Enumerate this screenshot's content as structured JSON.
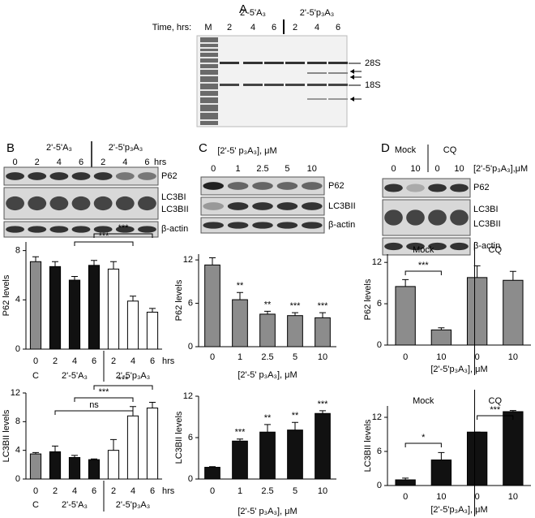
{
  "figure": {
    "A": {
      "label": "A",
      "time_label": "Time, hrs:",
      "marker_lane": "M",
      "groups": [
        "2'-5'A₃",
        "2'-5'p₃A₃"
      ],
      "lanes": [
        "2",
        "4",
        "6",
        "2",
        "4",
        "6"
      ],
      "markers": [
        "28S",
        "18S"
      ]
    },
    "B": {
      "label": "B",
      "groups": [
        "2'-5'A₃",
        "2'-5'p₃A₃"
      ],
      "lanes": [
        "0",
        "2",
        "4",
        "6",
        "2",
        "4",
        "6"
      ],
      "unit": "hrs",
      "blots": [
        "P62",
        "LC3BI",
        "LC3BII",
        "β-actin"
      ]
    },
    "C": {
      "label": "C",
      "header": "[2'-5' p₃A₃], μM",
      "lanes": [
        "0",
        "1",
        "2.5",
        "5",
        "10"
      ],
      "blots": [
        "P62",
        "LC3BII",
        "β-actin"
      ]
    },
    "D": {
      "label": "D",
      "groups": [
        "Mock",
        "CQ"
      ],
      "header": "[2'-5'p₃A₃],μM",
      "lanes": [
        "0",
        "10",
        "0",
        "10"
      ],
      "blots": [
        "P62",
        "LC3BI",
        "LC3BII",
        "β-actin"
      ]
    }
  },
  "chart_data": [
    {
      "type": "bar",
      "ylabel": "P62 levels",
      "categories": [
        "0",
        "2",
        "4",
        "6",
        "2",
        "4",
        "6"
      ],
      "values": [
        7.1,
        6.7,
        5.6,
        6.8,
        6.5,
        3.9,
        3.0
      ],
      "errors": [
        0.4,
        0.4,
        0.3,
        0.4,
        0.6,
        0.4,
        0.3
      ],
      "colors": [
        "#8c8c8c",
        "#111111",
        "#111111",
        "#111111",
        "#ffffff",
        "#ffffff",
        "#ffffff"
      ],
      "ylim": [
        0,
        8.7
      ],
      "yticks": [
        0,
        4,
        8
      ],
      "groups": [
        "C",
        "2'-5'A₃",
        "2'-5'p₃A₃"
      ],
      "x_unit": "hrs",
      "annotations": [
        "***",
        "***"
      ]
    },
    {
      "type": "bar",
      "ylabel": "LC3BII levels",
      "categories": [
        "0",
        "2",
        "4",
        "6",
        "2",
        "4",
        "6"
      ],
      "values": [
        3.5,
        3.8,
        3.0,
        2.7,
        4.0,
        8.8,
        9.9
      ],
      "errors": [
        0.2,
        0.8,
        0.3,
        0.1,
        1.5,
        1.3,
        0.8
      ],
      "colors": [
        "#8c8c8c",
        "#111111",
        "#111111",
        "#111111",
        "#ffffff",
        "#ffffff",
        "#ffffff"
      ],
      "ylim": [
        0,
        12
      ],
      "yticks": [
        0,
        4,
        8,
        12
      ],
      "groups": [
        "C",
        "2'-5'A₃",
        "2'-5'p₃A₃"
      ],
      "x_unit": "hrs",
      "annotations": [
        "ns",
        "***",
        "***"
      ]
    },
    {
      "type": "bar",
      "ylabel": "P62 levels",
      "xlabel": "[2'-5' p₃A₃], μM",
      "categories": [
        "0",
        "1",
        "2.5",
        "5",
        "10"
      ],
      "values": [
        11.3,
        6.5,
        4.5,
        4.3,
        4.0
      ],
      "errors": [
        1.0,
        1.0,
        0.4,
        0.4,
        0.7
      ],
      "colors": [
        "#8c8c8c",
        "#8c8c8c",
        "#8c8c8c",
        "#8c8c8c",
        "#8c8c8c"
      ],
      "ylim": [
        0,
        12.8
      ],
      "yticks": [
        0,
        6,
        12
      ],
      "annotations": [
        "**",
        "**",
        "***",
        "***"
      ]
    },
    {
      "type": "bar",
      "ylabel": "LC3BII levels",
      "xlabel": "[2'-5' p₃A₃], μM",
      "categories": [
        "0",
        "1",
        "2.5",
        "5",
        "10"
      ],
      "values": [
        1.7,
        5.5,
        6.8,
        7.1,
        9.5
      ],
      "errors": [
        0.1,
        0.3,
        1.1,
        1.1,
        0.4
      ],
      "colors": [
        "#111111",
        "#111111",
        "#111111",
        "#111111",
        "#111111"
      ],
      "ylim": [
        0,
        12
      ],
      "yticks": [
        0,
        6,
        12
      ],
      "annotations": [
        "***",
        "**",
        "**",
        "***"
      ]
    },
    {
      "type": "bar",
      "ylabel": "P62 levels",
      "xlabel": "[2'-5'p₃A₃], μM",
      "categories": [
        "0",
        "10",
        "0",
        "10"
      ],
      "values": [
        8.5,
        2.2,
        9.8,
        9.4
      ],
      "errors": [
        1.0,
        0.3,
        1.7,
        1.3
      ],
      "colors": [
        "#8c8c8c",
        "#8c8c8c",
        "#8c8c8c",
        "#8c8c8c"
      ],
      "ylim": [
        0,
        13.2
      ],
      "yticks": [
        0,
        6,
        12
      ],
      "groups": [
        "Mock",
        "CQ"
      ],
      "annotations": [
        "***"
      ]
    },
    {
      "type": "bar",
      "ylabel": "LC3BII levels",
      "xlabel": "[2'-5'p₃A₃], μM",
      "categories": [
        "0",
        "10",
        "0",
        "10"
      ],
      "values": [
        1.0,
        4.5,
        9.4,
        13.0
      ],
      "errors": [
        0.3,
        1.3,
        0,
        0.2
      ],
      "colors": [
        "#111111",
        "#111111",
        "#111111",
        "#111111"
      ],
      "ylim": [
        0,
        14
      ],
      "yticks": [
        0,
        6,
        12
      ],
      "groups": [
        "Mock",
        "CQ"
      ],
      "annotations": [
        "*",
        "***"
      ]
    }
  ]
}
